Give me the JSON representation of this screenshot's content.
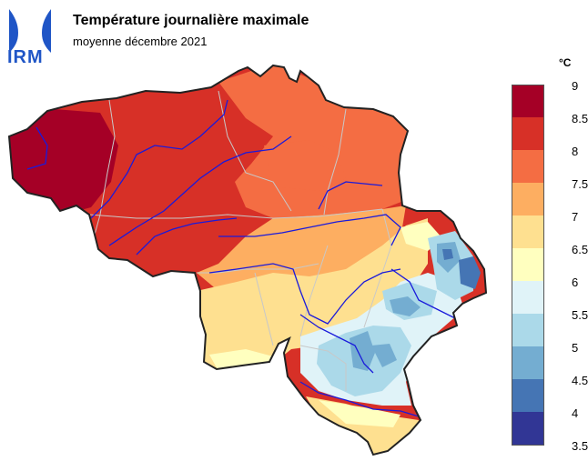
{
  "header": {
    "logo_text": "IRM",
    "title": "Température journalière maximale",
    "subtitle": "moyenne décembre 2021"
  },
  "legend": {
    "unit": "°C",
    "ticks": [
      "9",
      "8.5",
      "8",
      "7.5",
      "7",
      "6.5",
      "6",
      "5.5",
      "5",
      "4.5",
      "4",
      "3.5"
    ],
    "bins": [
      {
        "range": "8.5–9",
        "color": "#a50026"
      },
      {
        "range": "8–8.5",
        "color": "#d73027"
      },
      {
        "range": "7.5–8",
        "color": "#f46d43"
      },
      {
        "range": "7–7.5",
        "color": "#fdae61"
      },
      {
        "range": "6.5–7",
        "color": "#fee090"
      },
      {
        "range": "6–6.5",
        "color": "#ffffbf"
      },
      {
        "range": "5.5–6",
        "color": "#e0f3f8"
      },
      {
        "range": "5–5.5",
        "color": "#abd9e9"
      },
      {
        "range": "4.5–5",
        "color": "#74add1"
      },
      {
        "range": "4–4.5",
        "color": "#4575b4"
      },
      {
        "range": "3.5–4",
        "color": "#313695"
      }
    ]
  },
  "colors": {
    "border": "#222222",
    "rivers": "#1a1adb",
    "provinces": "#c8c8c8",
    "logo": "#1f55c6"
  }
}
